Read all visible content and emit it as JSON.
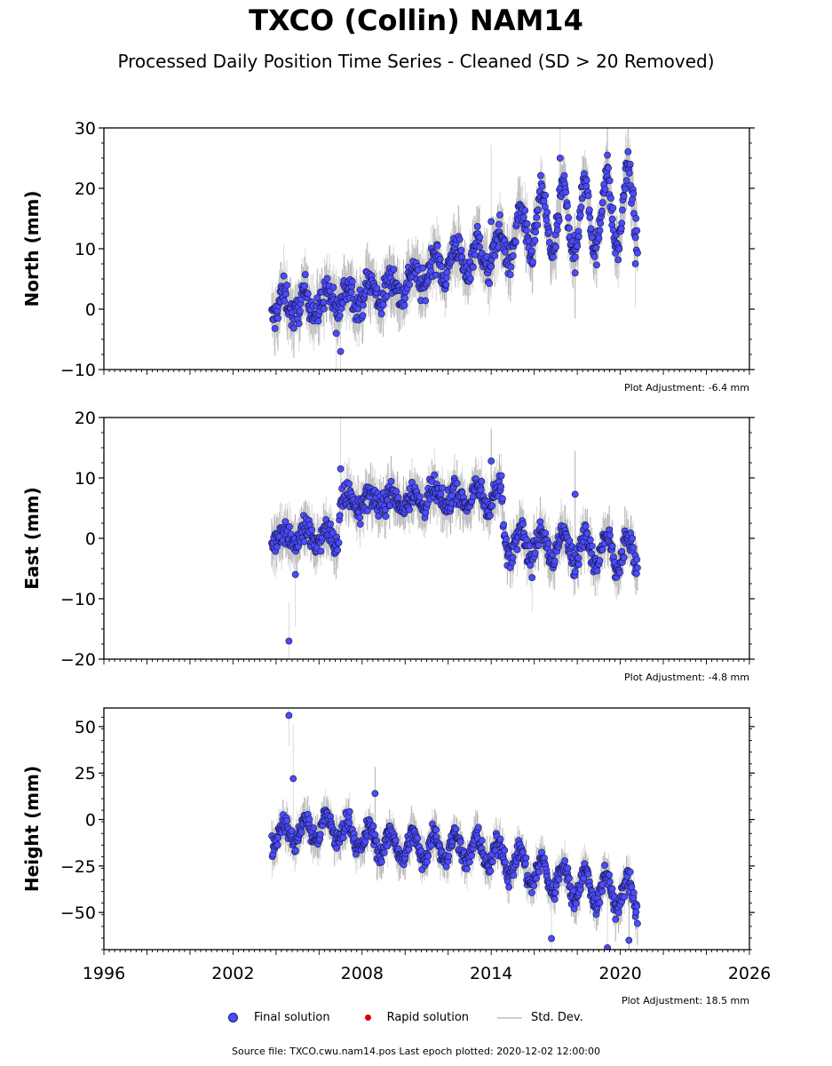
{
  "title": "TXCO (Collin) NAM14",
  "subtitle": "Processed Daily Position Time Series - Cleaned (SD > 20 Removed)",
  "colors": {
    "final": "#4b4bff",
    "rapid": "#e00000",
    "stddev": "#cfcfcf"
  },
  "legend": {
    "final": "Final solution",
    "rapid": "Rapid solution",
    "stddev": "Std. Dev."
  },
  "footer": "Source file: TXCO.cwu.nam14.pos  Last epoch plotted: 2020-12-02 12:00:00",
  "chart_data": [
    {
      "type": "scatter",
      "ylabel": "North (mm)",
      "adjustment": "Plot Adjustment: -6.4 mm",
      "xlim": [
        1996,
        2026
      ],
      "ylim": [
        -10,
        30
      ],
      "yticks": [
        -10,
        0,
        10,
        20,
        30
      ],
      "trend": [
        [
          2003.8,
          0.5
        ],
        [
          2006,
          1
        ],
        [
          2008,
          2.5
        ],
        [
          2010,
          4
        ],
        [
          2012,
          8
        ],
        [
          2014,
          9
        ],
        [
          2016,
          14
        ],
        [
          2018,
          15
        ],
        [
          2020.8,
          17
        ]
      ],
      "seasonal": [
        [
          2003.8,
          2
        ],
        [
          2010,
          2
        ],
        [
          2014.5,
          3
        ],
        [
          2016,
          5
        ],
        [
          2018,
          6
        ],
        [
          2020.8,
          7
        ]
      ],
      "scatter": 1.8,
      "outliers": [
        [
          2007.0,
          -7
        ],
        [
          2006.8,
          -4
        ],
        [
          2017.9,
          6
        ],
        [
          2020.7,
          7.5
        ],
        [
          2014.0,
          14.5
        ],
        [
          2019.4,
          25.5
        ],
        [
          2017.2,
          25
        ]
      ]
    },
    {
      "type": "scatter",
      "ylabel": "East (mm)",
      "adjustment": "Plot Adjustment: -4.8 mm",
      "xlim": [
        1996,
        2026
      ],
      "ylim": [
        -20,
        20
      ],
      "yticks": [
        -20,
        -10,
        0,
        10,
        20
      ],
      "trend": [
        [
          2003.8,
          0.5
        ],
        [
          2006.9,
          0
        ],
        [
          2007.0,
          6
        ],
        [
          2014.5,
          7
        ],
        [
          2014.6,
          0
        ],
        [
          2020.8,
          -3
        ]
      ],
      "seasonal": [
        [
          2003.8,
          1.2
        ],
        [
          2014.5,
          1.5
        ],
        [
          2014.6,
          2.5
        ],
        [
          2020.8,
          3
        ]
      ],
      "scatter": 1.5,
      "outliers": [
        [
          2004.6,
          -17
        ],
        [
          2007.0,
          11.5
        ],
        [
          2014.0,
          12.8
        ],
        [
          2004.9,
          -6
        ],
        [
          2015.9,
          -6.5
        ],
        [
          2017.9,
          7.3
        ]
      ]
    },
    {
      "type": "scatter",
      "ylabel": "Height (mm)",
      "adjustment": "Plot Adjustment: 18.5 mm",
      "xlim": [
        1996,
        2026
      ],
      "ylim": [
        -70,
        60
      ],
      "yticks": [
        -50,
        -25,
        0,
        25,
        50
      ],
      "xticks": [
        1996,
        2002,
        2008,
        2014,
        2020,
        2026
      ],
      "trend": [
        [
          2003.8,
          -8
        ],
        [
          2006.5,
          -4
        ],
        [
          2008,
          -10
        ],
        [
          2010,
          -15
        ],
        [
          2012,
          -14
        ],
        [
          2014,
          -18
        ],
        [
          2016,
          -28
        ],
        [
          2018,
          -35
        ],
        [
          2020.8,
          -42
        ]
      ],
      "seasonal": [
        [
          2003.8,
          6
        ],
        [
          2020.8,
          9
        ]
      ],
      "scatter": 4,
      "outliers": [
        [
          2004.6,
          56
        ],
        [
          2004.8,
          22
        ],
        [
          2008.6,
          14
        ],
        [
          2016.8,
          -64
        ],
        [
          2019.4,
          -69
        ],
        [
          2020.4,
          -65
        ]
      ]
    }
  ]
}
